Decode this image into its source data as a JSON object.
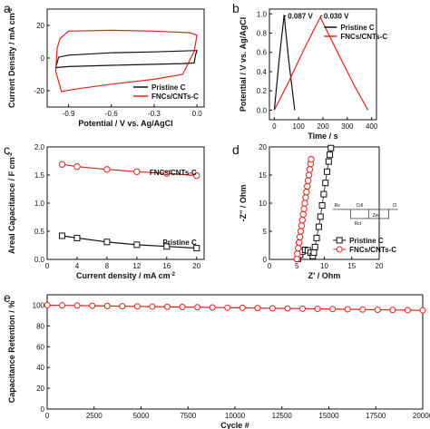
{
  "colors": {
    "pristine": "#111111",
    "fncs": "#e2231a",
    "axis": "#111111"
  },
  "chart_data": [
    {
      "id": "a",
      "type": "line",
      "panel_label": "a",
      "xlabel": "Potential / V vs. Ag/AgCl",
      "ylabel": "Current Density / mA cm",
      "ylabel_sup": "-2",
      "xlim": [
        -1.05,
        0.05
      ],
      "ylim": [
        -30,
        30
      ],
      "xticks": [
        -0.9,
        -0.6,
        -0.3,
        0.0
      ],
      "xtick_labels": [
        "-0.9",
        "-0.6",
        "-0.3",
        "0.0"
      ],
      "yticks": [
        -20,
        0,
        20
      ],
      "ytick_labels": [
        "-20",
        "0",
        "20"
      ],
      "legend": "bottom-right",
      "series": [
        {
          "name": "Pristine C",
          "color": "#111111",
          "x": [
            -0.99,
            -0.97,
            -0.9,
            -0.6,
            -0.3,
            0.0,
            -0.01,
            -0.02,
            -0.1,
            -0.5,
            -0.9,
            -0.98,
            -0.99
          ],
          "y": [
            -6,
            0.5,
            1.8,
            3.2,
            3.8,
            4.6,
            2,
            -3,
            -3.4,
            -4.2,
            -5.2,
            -5.8,
            -6
          ]
        },
        {
          "name": "FNCs/CNTs-C",
          "color": "#e2231a",
          "x": [
            -0.99,
            -0.98,
            -0.96,
            -0.9,
            -0.6,
            -0.3,
            -0.05,
            0.0,
            -0.02,
            -0.1,
            -0.3,
            -0.6,
            -0.85,
            -0.95,
            -0.99
          ],
          "y": [
            -8,
            6,
            12,
            16.5,
            17,
            16.5,
            15.5,
            14,
            4,
            -10,
            -13,
            -16,
            -19,
            -20.5,
            -8
          ]
        }
      ]
    },
    {
      "id": "b",
      "type": "line",
      "panel_label": "b",
      "xlabel": "Time / s",
      "ylabel": "Potential / V vs. Ag/AgCl",
      "xlim": [
        -20,
        420
      ],
      "ylim": [
        -0.1,
        1.05
      ],
      "xticks": [
        0,
        100,
        200,
        300,
        400
      ],
      "xtick_labels": [
        "0",
        "100",
        "200",
        "300",
        "400"
      ],
      "yticks": [
        0.0,
        0.2,
        0.4,
        0.6,
        0.8,
        1.0
      ],
      "ytick_labels": [
        "0.0",
        "0.2",
        "0.4",
        "0.6",
        "0.8",
        "1.0"
      ],
      "legend": "top-right",
      "annotations": [
        "0.087 V",
        "0.030 V"
      ],
      "series": [
        {
          "name": "Pristine C",
          "color": "#111111",
          "x": [
            0,
            20,
            40,
            42,
            44,
            60,
            84
          ],
          "y": [
            0,
            0.52,
            0.98,
            0.97,
            0.89,
            0.5,
            0
          ]
        },
        {
          "name": "FNCs/CNTs-C",
          "color": "#e2231a",
          "x": [
            0,
            60,
            120,
            190,
            192,
            260,
            330,
            385
          ],
          "y": [
            0,
            0.3,
            0.62,
            0.97,
            0.95,
            0.6,
            0.25,
            0
          ]
        }
      ]
    },
    {
      "id": "c",
      "type": "line",
      "panel_label": "c",
      "xlabel": "Current density / mA cm",
      "xlabel_sup": "-2",
      "ylabel": "Areal Capacitance / F cm",
      "ylabel_sup": "-2",
      "xlim": [
        0,
        21
      ],
      "ylim": [
        0,
        2.0
      ],
      "xticks": [
        0,
        4,
        8,
        12,
        16,
        20
      ],
      "xtick_labels": [
        "0",
        "4",
        "8",
        "12",
        "16",
        "20"
      ],
      "yticks": [
        0.0,
        0.5,
        1.0,
        1.5,
        2.0
      ],
      "ytick_labels": [
        "0.0",
        "0.5",
        "1.0",
        "1.5",
        "2.0"
      ],
      "legend": "inline",
      "series": [
        {
          "name": "FNCs/CNTs-C",
          "color": "#e2231a",
          "marker": "circle",
          "x": [
            2,
            4,
            8,
            12,
            16,
            20
          ],
          "y": [
            1.69,
            1.65,
            1.6,
            1.56,
            1.53,
            1.49
          ]
        },
        {
          "name": "Pristine C",
          "color": "#111111",
          "marker": "square",
          "x": [
            2,
            4,
            8,
            12,
            16,
            20
          ],
          "y": [
            0.42,
            0.38,
            0.31,
            0.26,
            0.23,
            0.2
          ]
        }
      ]
    },
    {
      "id": "d",
      "type": "scatter",
      "panel_label": "d",
      "xlabel": "Z' / Ohm",
      "ylabel": "-Z'' / Ohm",
      "xlim": [
        0,
        20
      ],
      "ylim": [
        0,
        20
      ],
      "xticks": [
        0,
        5,
        10,
        15,
        20
      ],
      "xtick_labels": [
        "0",
        "5",
        "10",
        "15",
        "20"
      ],
      "yticks": [
        0,
        5,
        10,
        15,
        20
      ],
      "ytick_labels": [
        "0",
        "5",
        "10",
        "15",
        "20"
      ],
      "legend": "bottom-right",
      "circuit_labels": [
        "Rs",
        "Cdl",
        "Cl",
        "Rct",
        "Zw"
      ],
      "series": [
        {
          "name": "Pristine C",
          "color": "#111111",
          "marker": "square",
          "x": [
            5.2,
            5.6,
            6.0,
            6.5,
            7.0,
            7.5,
            7.9,
            8.1,
            8.3,
            8.6,
            9.0,
            9.3,
            9.6,
            9.9,
            10.2,
            10.5,
            10.8,
            11.0,
            11.2
          ],
          "y": [
            0.1,
            0.8,
            1.4,
            1.7,
            1.6,
            1.2,
            0.6,
            1.2,
            2.2,
            3.8,
            5.8,
            7.6,
            9.6,
            11.6,
            13.6,
            15.6,
            17.4,
            18.6,
            19.8
          ]
        },
        {
          "name": "FNCs/CNTs-C",
          "color": "#e2231a",
          "marker": "circle",
          "x": [
            5.0,
            5.1,
            5.25,
            5.4,
            5.55,
            5.7,
            5.85,
            6.0,
            6.15,
            6.3,
            6.45,
            6.6,
            6.75,
            6.9,
            7.05,
            7.2,
            7.35,
            7.5,
            7.6
          ],
          "y": [
            0.1,
            1.0,
            2.0,
            3.0,
            4.0,
            5.0,
            6.0,
            7.0,
            8.0,
            9.0,
            10.0,
            11.0,
            12.0,
            13.0,
            14.0,
            15.0,
            16.0,
            17.0,
            17.8
          ]
        }
      ]
    },
    {
      "id": "e",
      "type": "line",
      "panel_label": "e",
      "xlabel": "Cycle #",
      "ylabel": "Capacitance Retention / %",
      "xlim": [
        0,
        20000
      ],
      "ylim": [
        0,
        110
      ],
      "xticks": [
        0,
        2500,
        5000,
        7500,
        10000,
        12500,
        15000,
        17500,
        20000
      ],
      "xtick_labels": [
        "0",
        "2500",
        "5000",
        "7500",
        "10000",
        "12500",
        "15000",
        "17500",
        "20000"
      ],
      "yticks": [
        0,
        20,
        40,
        60,
        80,
        100
      ],
      "ytick_labels": [
        "0",
        "20",
        "40",
        "60",
        "80",
        "100"
      ],
      "series": [
        {
          "name": "FNCs/CNTs-C",
          "color": "#e2231a",
          "marker": "circle",
          "x": [
            0,
            800,
            1600,
            2400,
            3200,
            4000,
            4800,
            5600,
            6400,
            7200,
            8000,
            8800,
            9600,
            10400,
            11200,
            12000,
            12800,
            13600,
            14400,
            15200,
            16000,
            16800,
            17600,
            18400,
            19200,
            20000
          ],
          "y": [
            100,
            99.8,
            99.6,
            99.4,
            99.2,
            99.0,
            98.8,
            98.6,
            98.4,
            98.2,
            98.0,
            97.8,
            97.6,
            97.4,
            97.2,
            97.0,
            96.8,
            96.6,
            96.4,
            96.2,
            96.0,
            95.8,
            95.6,
            95.4,
            95.2,
            95.0
          ]
        }
      ]
    }
  ]
}
